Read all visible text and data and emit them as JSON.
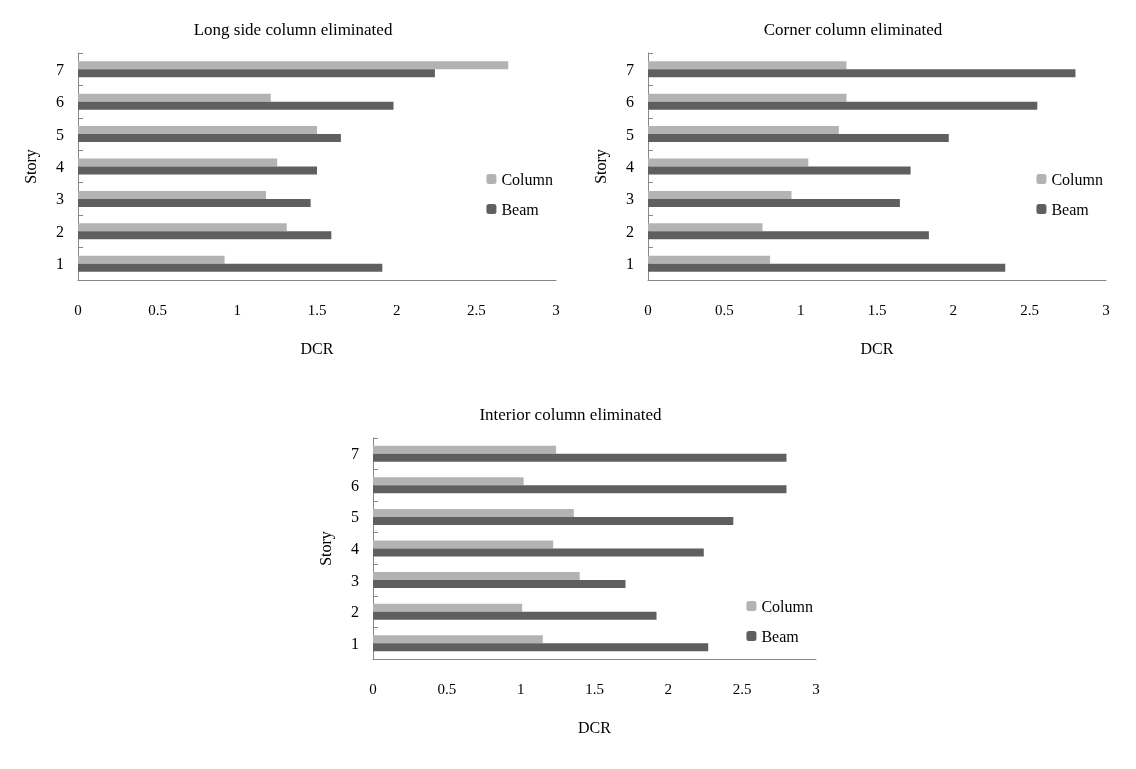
{
  "chart_data": [
    {
      "type": "bar",
      "orientation": "horizontal",
      "title": "Long side column eliminated",
      "xlabel": "DCR",
      "ylabel": "Story",
      "categories": [
        "7",
        "6",
        "5",
        "4",
        "3",
        "2",
        "1"
      ],
      "xlim": [
        0,
        3
      ],
      "xticks": [
        0,
        0.5,
        1,
        1.5,
        2,
        2.5,
        3
      ],
      "grid": false,
      "legend": "right",
      "series": [
        {
          "name": "Column",
          "color": "#b3b3b3",
          "values": [
            2.7,
            1.21,
            1.5,
            1.25,
            1.18,
            1.31,
            0.92
          ]
        },
        {
          "name": "Beam",
          "color": "#5f5f5f",
          "values": [
            2.24,
            1.98,
            1.65,
            1.5,
            1.46,
            1.59,
            1.91
          ]
        }
      ]
    },
    {
      "type": "bar",
      "orientation": "horizontal",
      "title": "Corner column eliminated",
      "xlabel": "DCR",
      "ylabel": "Story",
      "categories": [
        "7",
        "6",
        "5",
        "4",
        "3",
        "2",
        "1"
      ],
      "xlim": [
        0,
        3
      ],
      "xticks": [
        0,
        0.5,
        1,
        1.5,
        2,
        2.5,
        3
      ],
      "grid": false,
      "legend": "right",
      "series": [
        {
          "name": "Column",
          "color": "#b3b3b3",
          "values": [
            1.3,
            1.3,
            1.25,
            1.05,
            0.94,
            0.75,
            0.8
          ]
        },
        {
          "name": "Beam",
          "color": "#5f5f5f",
          "values": [
            2.8,
            2.55,
            1.97,
            1.72,
            1.65,
            1.84,
            2.34
          ]
        }
      ]
    },
    {
      "type": "bar",
      "orientation": "horizontal",
      "title": "Interior column eliminated",
      "xlabel": "DCR",
      "ylabel": "Story",
      "categories": [
        "7",
        "6",
        "5",
        "4",
        "3",
        "2",
        "1"
      ],
      "xlim": [
        0,
        3
      ],
      "xticks": [
        0,
        0.5,
        1,
        1.5,
        2,
        2.5,
        3
      ],
      "grid": false,
      "legend": "bottom right",
      "series": [
        {
          "name": "Column",
          "color": "#b3b3b3",
          "values": [
            1.24,
            1.02,
            1.36,
            1.22,
            1.4,
            1.01,
            1.15
          ]
        },
        {
          "name": "Beam",
          "color": "#5f5f5f",
          "values": [
            2.8,
            2.8,
            2.44,
            2.24,
            1.71,
            1.92,
            2.27
          ]
        }
      ]
    }
  ]
}
